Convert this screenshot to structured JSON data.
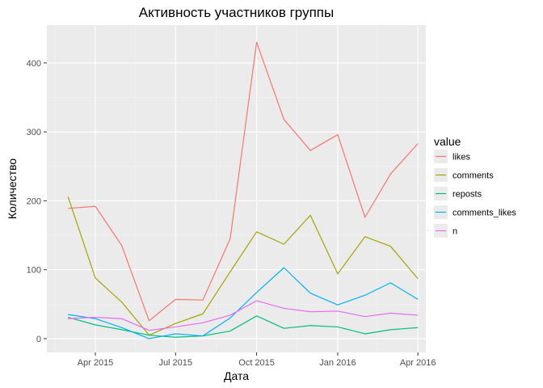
{
  "chart_data": {
    "type": "line",
    "title": "Активность участников группы",
    "xlabel": "Дата",
    "ylabel": "Количество",
    "x_type": "date",
    "xlim": [
      "2015-02-05",
      "2016-04-10"
    ],
    "ylim": [
      -20,
      455
    ],
    "x_ticks": [
      {
        "date": "2015-04-01",
        "label": "Apr 2015"
      },
      {
        "date": "2015-07-01",
        "label": "Jul 2015"
      },
      {
        "date": "2015-10-01",
        "label": "Oct 2015"
      },
      {
        "date": "2016-01-01",
        "label": "Jan 2016"
      },
      {
        "date": "2016-04-01",
        "label": "Apr 2016"
      }
    ],
    "x_minor_ticks": [
      "2015-02-14",
      "2015-05-16",
      "2015-08-16",
      "2015-11-16",
      "2016-02-15"
    ],
    "y_ticks": [
      0,
      100,
      200,
      300,
      400
    ],
    "y_minor_ticks": [
      50,
      150,
      250,
      350
    ],
    "x": [
      "2015-03-01",
      "2015-04-01",
      "2015-05-01",
      "2015-06-01",
      "2015-07-01",
      "2015-08-01",
      "2015-09-01",
      "2015-10-01",
      "2015-11-01",
      "2015-12-01",
      "2016-01-01",
      "2016-02-01",
      "2016-03-01",
      "2016-04-01"
    ],
    "legend_title": "value",
    "legend_position": "right",
    "grid": true,
    "series": [
      {
        "name": "likes",
        "color": "#F8766D",
        "values": [
          189,
          192,
          135,
          26,
          57,
          56,
          145,
          430,
          318,
          273,
          296,
          176,
          239,
          283
        ]
      },
      {
        "name": "comments",
        "color": "#A3A500",
        "values": [
          206,
          88,
          53,
          5,
          22,
          36,
          97,
          155,
          137,
          179,
          94,
          148,
          134,
          87
        ]
      },
      {
        "name": "reposts",
        "color": "#00BF7D",
        "values": [
          31,
          20,
          13,
          5,
          2,
          4,
          11,
          33,
          15,
          19,
          17,
          7,
          13,
          16
        ]
      },
      {
        "name": "comments_likes",
        "color": "#00B0F6",
        "values": [
          35,
          29,
          16,
          0,
          7,
          4,
          30,
          67,
          103,
          66,
          49,
          63,
          81,
          57
        ]
      },
      {
        "name": "n",
        "color": "#E76BF3",
        "values": [
          29,
          31,
          29,
          12,
          17,
          23,
          34,
          55,
          44,
          39,
          40,
          32,
          37,
          34
        ]
      }
    ]
  }
}
